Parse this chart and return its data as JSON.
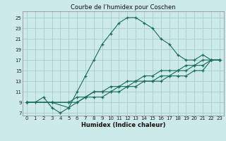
{
  "title": "Courbe de l’humidex pour Coschen",
  "xlabel": "Humidex (Indice chaleur)",
  "bg_color": "#cceaea",
  "grid_color": "#aacccc",
  "line_color": "#1a6b5a",
  "xlim": [
    -0.5,
    23.5
  ],
  "ylim": [
    6.5,
    26.2
  ],
  "xticks": [
    0,
    1,
    2,
    3,
    4,
    5,
    6,
    7,
    8,
    9,
    10,
    11,
    12,
    13,
    14,
    15,
    16,
    17,
    18,
    19,
    20,
    21,
    22,
    23
  ],
  "yticks": [
    7,
    9,
    11,
    13,
    15,
    17,
    19,
    21,
    23,
    25
  ],
  "line1_x": [
    0,
    1,
    2,
    3,
    4,
    5,
    6,
    7,
    8,
    9,
    10,
    11,
    12,
    13,
    14,
    15,
    16,
    17,
    18,
    19,
    20,
    21,
    22,
    23
  ],
  "line1_y": [
    9,
    9,
    10,
    8,
    7,
    8,
    11,
    14,
    17,
    20,
    22,
    24,
    25,
    25,
    24,
    23,
    21,
    20,
    18,
    17,
    17,
    18,
    17,
    17
  ],
  "line2_x": [
    0,
    3,
    5,
    6,
    7,
    8,
    9,
    10,
    11,
    12,
    13,
    14,
    15,
    16,
    17,
    18,
    19,
    20,
    21,
    22,
    23
  ],
  "line2_y": [
    9,
    9,
    8,
    9,
    10,
    11,
    11,
    12,
    12,
    13,
    13,
    14,
    14,
    15,
    15,
    15,
    16,
    16,
    17,
    17,
    17
  ],
  "line3_x": [
    0,
    3,
    5,
    6,
    7,
    8,
    9,
    10,
    11,
    12,
    13,
    14,
    15,
    16,
    17,
    18,
    19,
    20,
    21,
    22,
    23
  ],
  "line3_y": [
    9,
    9,
    9,
    10,
    10,
    11,
    11,
    11,
    12,
    12,
    13,
    13,
    13,
    14,
    14,
    15,
    15,
    16,
    16,
    17,
    17
  ],
  "line4_x": [
    0,
    3,
    5,
    6,
    7,
    8,
    9,
    10,
    11,
    12,
    13,
    14,
    15,
    16,
    17,
    18,
    19,
    20,
    21,
    22,
    23
  ],
  "line4_y": [
    9,
    9,
    9,
    9,
    10,
    10,
    10,
    11,
    11,
    12,
    12,
    13,
    13,
    13,
    14,
    14,
    14,
    15,
    15,
    17,
    17
  ]
}
